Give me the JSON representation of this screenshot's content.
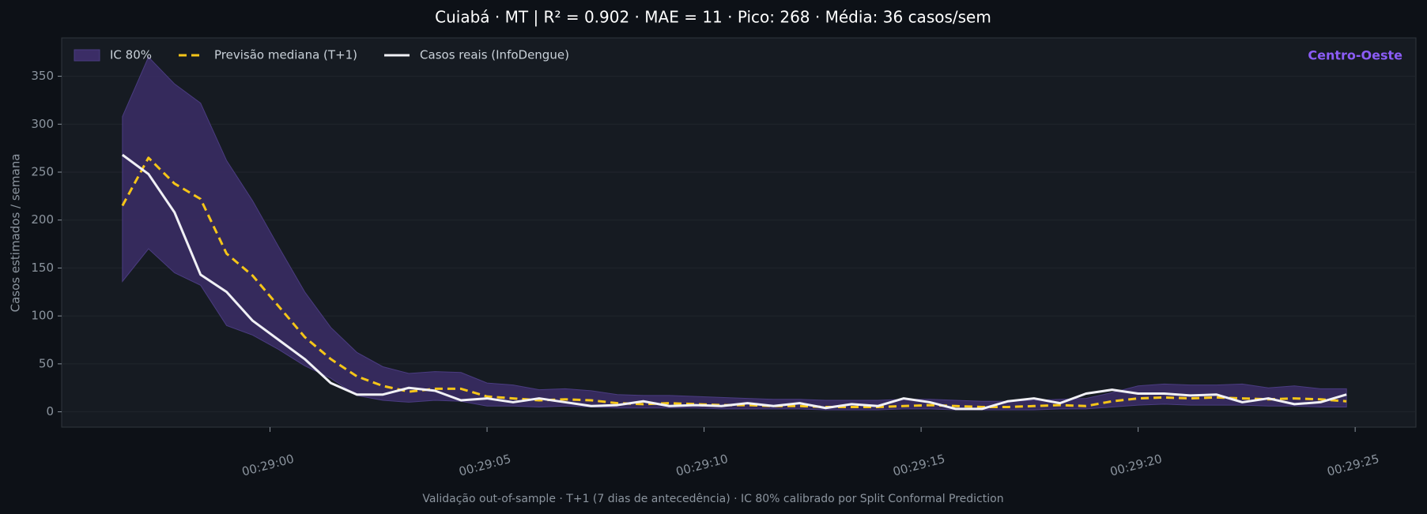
{
  "chart_data": {
    "type": "line",
    "title": "Cuiabá · MT   |   R² = 0.902  ·  MAE = 11  ·  Pico: 268  ·  Média: 36 casos/sem",
    "ylabel": "Casos estimados / semana",
    "footnote": "Validação out-of-sample · T+1 (7 dias de antecedência) · IC 80% calibrado por Split Conformal Prediction",
    "annotation": "Centro-Oeste",
    "annotation_color": "#8b5cf6",
    "legend": "upper left",
    "grid": true,
    "x": [
      1736.6,
      1737.2,
      1737.8,
      1738.4,
      1739.0,
      1739.6,
      1740.2,
      1740.8,
      1741.4,
      1742.0,
      1742.6,
      1743.2,
      1743.8,
      1744.4,
      1745.0,
      1745.6,
      1746.2,
      1746.8,
      1747.4,
      1748.0,
      1748.6,
      1749.2,
      1749.8,
      1750.4,
      1751.0,
      1751.6,
      1752.2,
      1752.8,
      1753.4,
      1754.0,
      1754.6,
      1755.2,
      1755.8,
      1756.4,
      1757.0,
      1757.6,
      1758.2,
      1758.8,
      1759.4,
      1760.0,
      1760.6,
      1761.2,
      1761.8,
      1762.4,
      1763.0,
      1763.6,
      1764.2,
      1764.8
    ],
    "xlim": [
      1735.2,
      1766.4
    ],
    "xticks": [
      {
        "value": 1740,
        "label": "00:29:00"
      },
      {
        "value": 1745,
        "label": "00:29:05"
      },
      {
        "value": 1750,
        "label": "00:29:10"
      },
      {
        "value": 1755,
        "label": "00:29:15"
      },
      {
        "value": 1760,
        "label": "00:29:20"
      },
      {
        "value": 1765,
        "label": "00:29:25"
      }
    ],
    "ylim": [
      -16,
      390
    ],
    "yticks": [
      0,
      50,
      100,
      150,
      200,
      250,
      300,
      350
    ],
    "series": [
      {
        "name": "IC 80%",
        "type": "band",
        "color": "#3b2d66",
        "upper": [
          308,
          370,
          342,
          322,
          262,
          220,
          172,
          125,
          88,
          62,
          47,
          40,
          42,
          41,
          30,
          28,
          23,
          24,
          22,
          18,
          17,
          17,
          16,
          15,
          14,
          13,
          13,
          12,
          12,
          12,
          13,
          13,
          12,
          11,
          11,
          12,
          13,
          14,
          20,
          27,
          29,
          28,
          28,
          29,
          25,
          27,
          24,
          24
        ],
        "lower": [
          136,
          170,
          145,
          132,
          90,
          80,
          65,
          48,
          35,
          17,
          12,
          10,
          12,
          11,
          6,
          6,
          5,
          6,
          5,
          4,
          4,
          4,
          4,
          3,
          3,
          3,
          3,
          2,
          2,
          2,
          3,
          3,
          2,
          2,
          2,
          2,
          3,
          3,
          5,
          7,
          8,
          7,
          7,
          7,
          6,
          6,
          5,
          5
        ]
      },
      {
        "name": "Previsão mediana (T+1)",
        "type": "line",
        "dash": true,
        "color": "#f5c518",
        "values": [
          215,
          265,
          238,
          222,
          165,
          142,
          110,
          78,
          55,
          37,
          27,
          21,
          24,
          24,
          16,
          14,
          12,
          13,
          12,
          9,
          8,
          9,
          8,
          7,
          7,
          6,
          6,
          5,
          5,
          5,
          6,
          7,
          6,
          5,
          5,
          6,
          7,
          6,
          11,
          14,
          15,
          14,
          15,
          14,
          13,
          14,
          13,
          11
        ]
      },
      {
        "name": "Casos reais (InfoDengue)",
        "type": "line",
        "color": "#f0f0f5",
        "values": [
          268,
          248,
          208,
          143,
          125,
          95,
          75,
          55,
          30,
          18,
          18,
          25,
          22,
          12,
          14,
          10,
          14,
          10,
          6,
          7,
          11,
          6,
          7,
          6,
          9,
          6,
          9,
          4,
          8,
          6,
          14,
          10,
          3,
          3,
          11,
          14,
          9,
          19,
          23,
          19,
          19,
          17,
          18,
          10,
          14,
          8,
          10,
          18
        ]
      }
    ]
  }
}
